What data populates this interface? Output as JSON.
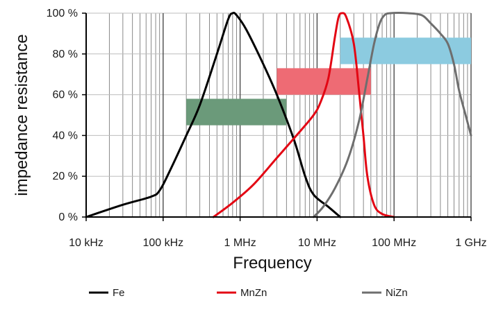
{
  "chart_data": {
    "type": "line",
    "xlabel": "Frequency",
    "ylabel": "impedance resistance",
    "x_scale": "log",
    "xlim": [
      10000,
      1000000000
    ],
    "ylim": [
      0,
      100
    ],
    "x_ticks": [
      {
        "value": 10000,
        "label": "10 kHz"
      },
      {
        "value": 100000,
        "label": "100 kHz"
      },
      {
        "value": 1000000,
        "label": "1 MHz"
      },
      {
        "value": 10000000,
        "label": "10 MHz"
      },
      {
        "value": 100000000,
        "label": "100 MHz"
      },
      {
        "value": 1000000000,
        "label": "1 GHz"
      }
    ],
    "y_ticks": [
      {
        "value": 0,
        "label": "0 %"
      },
      {
        "value": 20,
        "label": "20 %"
      },
      {
        "value": 40,
        "label": "40 %"
      },
      {
        "value": 60,
        "label": "60 %"
      },
      {
        "value": 80,
        "label": "80 %"
      },
      {
        "value": 100,
        "label": "100 %"
      }
    ],
    "grid": true,
    "legend_position": "bottom",
    "series": [
      {
        "name": "Fe",
        "color": "#000000",
        "points": [
          [
            10000,
            0
          ],
          [
            30000,
            6
          ],
          [
            70000,
            10
          ],
          [
            90000,
            13
          ],
          [
            120000,
            22
          ],
          [
            200000,
            40
          ],
          [
            300000,
            55
          ],
          [
            500000,
            80
          ],
          [
            700000,
            97
          ],
          [
            800000,
            100
          ],
          [
            900000,
            99
          ],
          [
            1200000,
            92
          ],
          [
            2000000,
            75
          ],
          [
            3000000,
            60
          ],
          [
            5000000,
            38
          ],
          [
            7000000,
            20
          ],
          [
            9000000,
            11
          ],
          [
            14000000,
            5
          ],
          [
            20000000,
            0
          ]
        ]
      },
      {
        "name": "MnZn",
        "color": "#e30613",
        "points": [
          [
            450000,
            0
          ],
          [
            800000,
            7
          ],
          [
            1500000,
            16
          ],
          [
            3000000,
            29
          ],
          [
            6000000,
            42
          ],
          [
            9000000,
            50
          ],
          [
            11000000,
            56
          ],
          [
            14000000,
            68
          ],
          [
            17000000,
            88
          ],
          [
            19000000,
            98
          ],
          [
            21000000,
            100
          ],
          [
            24000000,
            98
          ],
          [
            30000000,
            85
          ],
          [
            35000000,
            62
          ],
          [
            40000000,
            40
          ],
          [
            45000000,
            20
          ],
          [
            55000000,
            6
          ],
          [
            70000000,
            1.5
          ],
          [
            100000000,
            0
          ]
        ]
      },
      {
        "name": "NiZn",
        "color": "#6e6e6e",
        "points": [
          [
            9000000,
            0
          ],
          [
            12000000,
            5
          ],
          [
            17000000,
            14
          ],
          [
            25000000,
            28
          ],
          [
            35000000,
            47
          ],
          [
            45000000,
            68
          ],
          [
            55000000,
            85
          ],
          [
            65000000,
            95
          ],
          [
            75000000,
            99
          ],
          [
            90000000,
            100
          ],
          [
            150000000,
            100
          ],
          [
            230000000,
            99
          ],
          [
            300000000,
            95
          ],
          [
            400000000,
            90
          ],
          [
            500000000,
            85
          ],
          [
            600000000,
            75
          ],
          [
            700000000,
            62
          ],
          [
            850000000,
            50
          ],
          [
            1000000000,
            40
          ]
        ]
      }
    ],
    "bands": [
      {
        "color": "#6b9a7a",
        "x": [
          200000,
          4000000
        ],
        "y": [
          45,
          58
        ]
      },
      {
        "color": "#ee6b74",
        "x": [
          3000000,
          50000000
        ],
        "y": [
          60,
          73
        ]
      },
      {
        "color": "#8ccbe0",
        "x": [
          20000000,
          1000000000
        ],
        "y": [
          75,
          88
        ]
      }
    ]
  }
}
